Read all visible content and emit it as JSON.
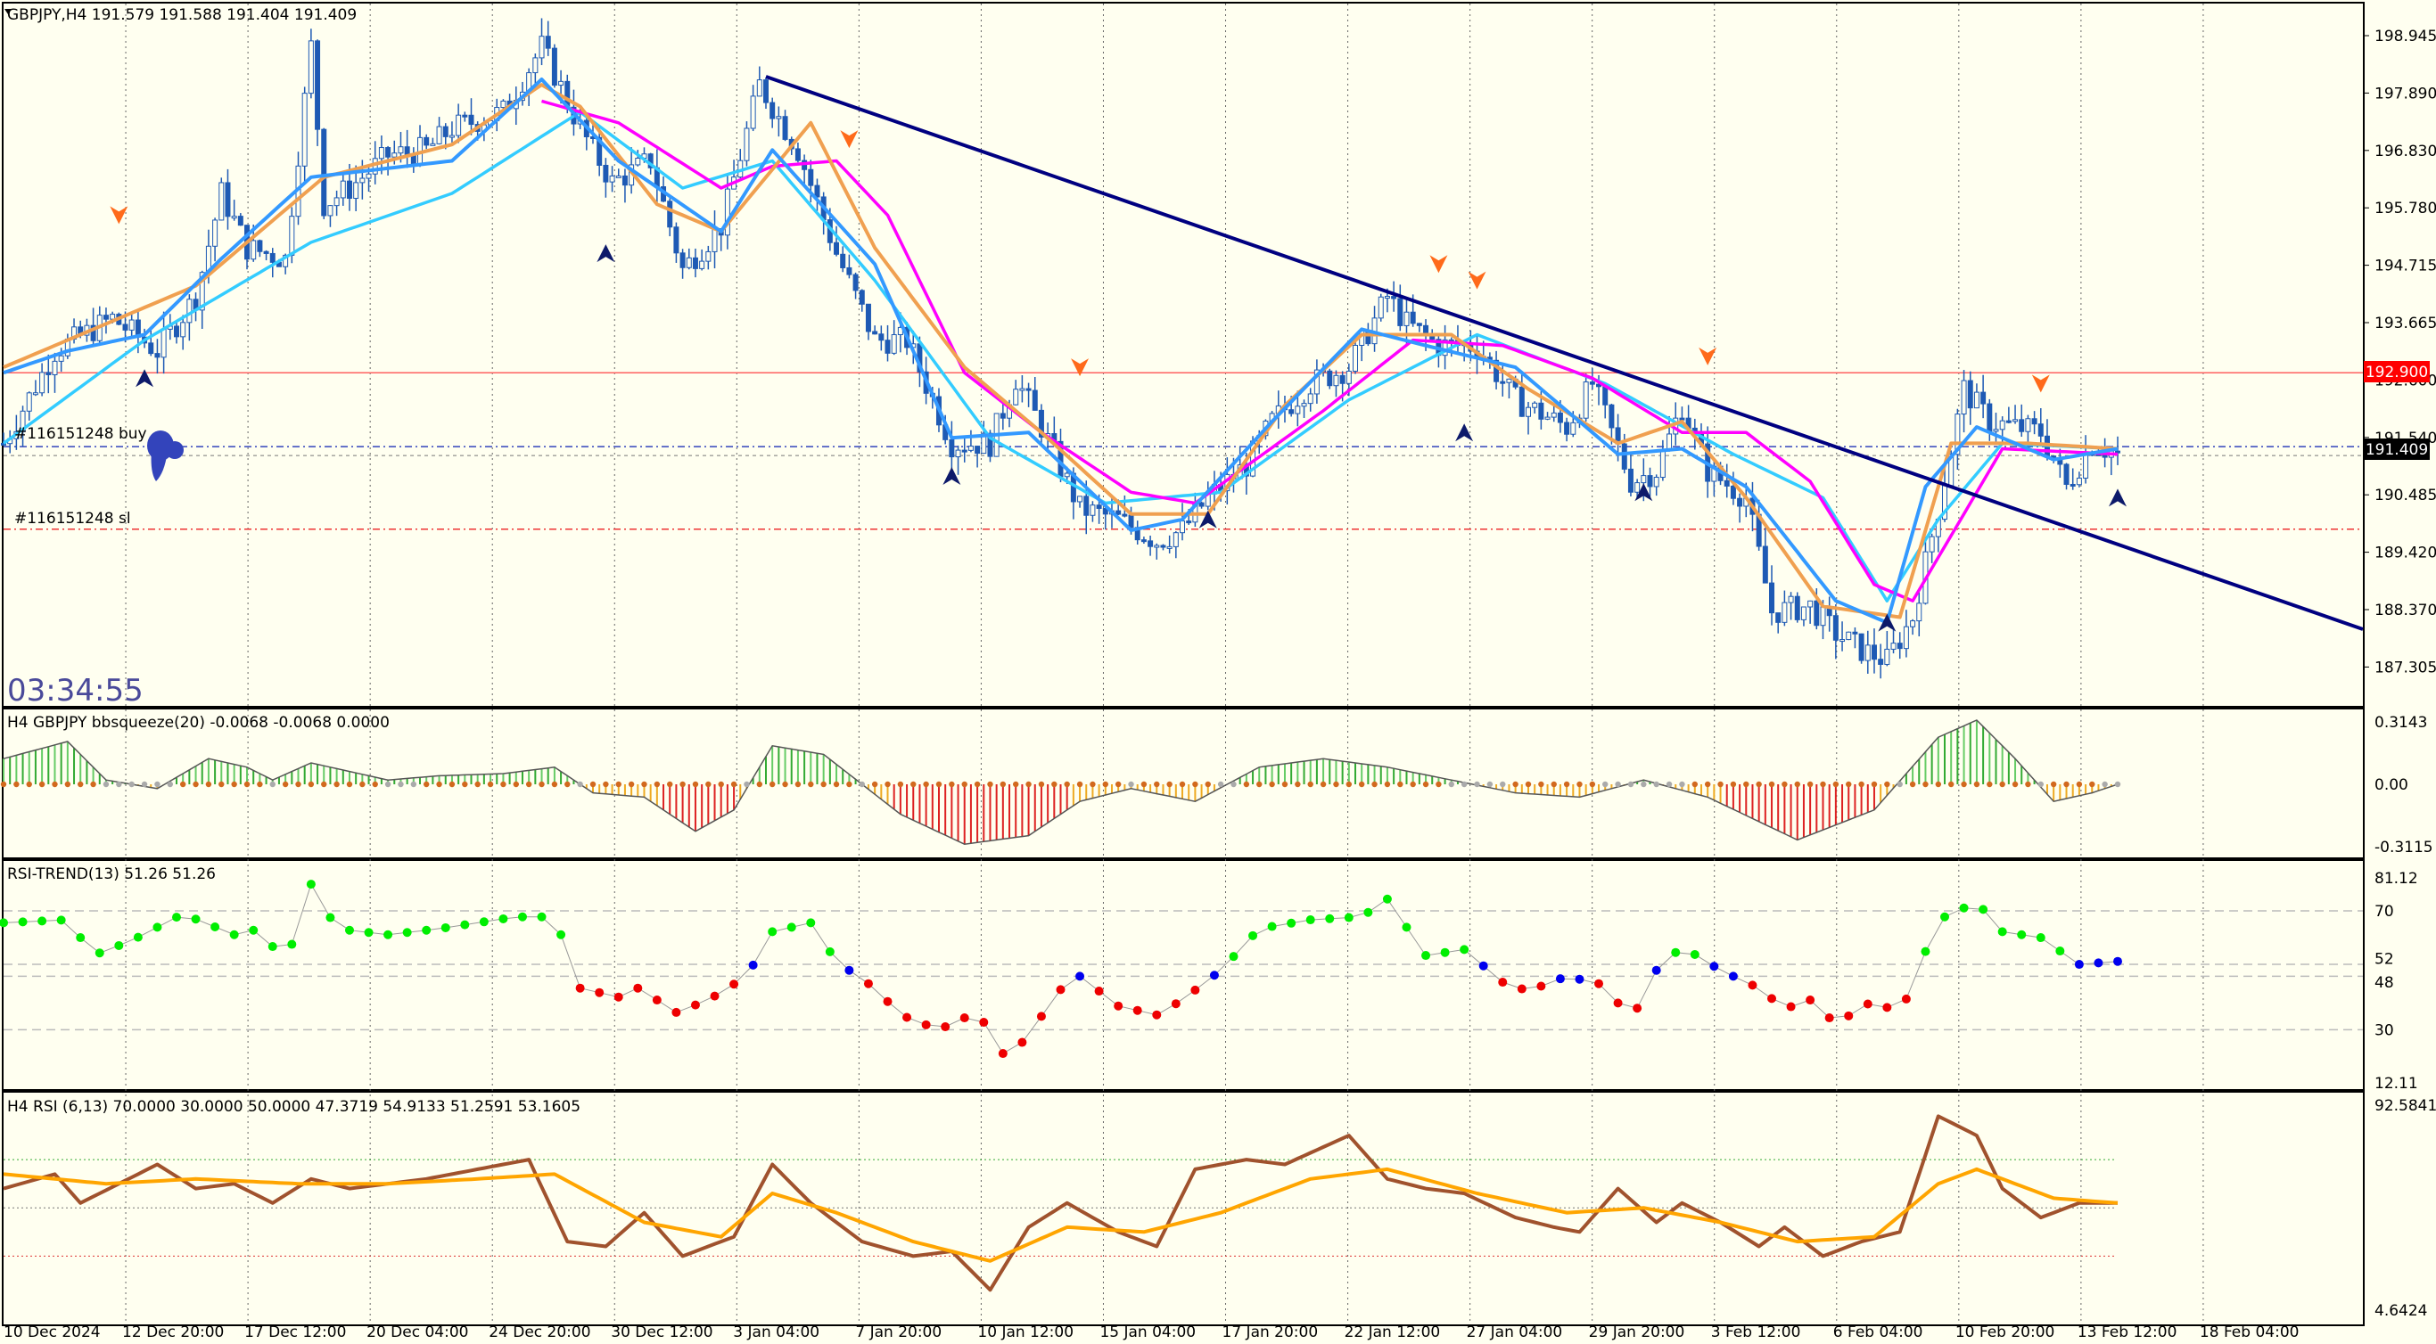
{
  "symbol_header": "GBPJPY,H4  191.579 191.588 191.404 191.409",
  "timer": "03:34:55",
  "orders": {
    "buy_label": "#116151248 buy",
    "sl_label": "#116151248 sl"
  },
  "price_tags": {
    "resistance": "192.900",
    "current": "191.409",
    "current_partial": "191.5??"
  },
  "colors": {
    "background": "#fffff0",
    "candle": "#1e5ab4",
    "ma_fast": "#3399ff",
    "ma_slow": "#33ccff",
    "ma_orange": "#f0a050",
    "ma_magenta": "#ff00ff",
    "trendline": "#000080",
    "resistance_line": "#ff6060",
    "price_tag_red": "#ff0000",
    "price_tag_black": "#000000",
    "rsi_up": "#00ee00",
    "rsi_down": "#ee0000",
    "rsi_neutral": "#0000ee",
    "rsi_line": "#a0522d",
    "rsi_signal": "#ffa500",
    "squeeze_pos": "#00aa00",
    "squeeze_neg": "#ee0000",
    "squeeze_dot_on": "#d2691e",
    "squeeze_dot_off": "#aaaaaa"
  },
  "price_axis": {
    "labels": [
      "198.945",
      "197.890",
      "196.830",
      "195.780",
      "194.715",
      "193.665",
      "192.600",
      "191.540",
      "190.485",
      "189.420",
      "188.370",
      "187.305"
    ]
  },
  "panels": {
    "squeeze": {
      "title": "H4 GBPJPY bbsqueeze(20) -0.0068 -0.0068 0.0000",
      "axis": [
        "0.3143",
        "0.00",
        "-0.3115"
      ]
    },
    "rsi_trend": {
      "title": "RSI-TREND(13) 51.26 51.26",
      "axis": [
        "81.12",
        "70",
        "52",
        "48",
        "30",
        "12.11"
      ]
    },
    "rsi": {
      "title": "H4 RSI  (6,13) 70.0000 30.0000 50.0000 47.3719 54.9133 51.2591 53.1605",
      "axis": [
        "92.5841",
        "4.6424"
      ]
    }
  },
  "time_axis": {
    "labels": [
      "10 Dec 2024",
      "12 Dec 20:00",
      "17 Dec 12:00",
      "20 Dec 04:00",
      "24 Dec 20:00",
      "30 Dec 12:00",
      "3 Jan 04:00",
      "7 Jan 20:00",
      "10 Jan 12:00",
      "15 Jan 04:00",
      "17 Jan 20:00",
      "22 Jan 12:00",
      "27 Jan 04:00",
      "29 Jan 20:00",
      "3 Feb 12:00",
      "6 Feb 04:00",
      "10 Feb 20:00",
      "13 Feb 12:00",
      "18 Feb 04:00"
    ]
  },
  "chart_data": {
    "type": "candlestick",
    "symbol": "GBPJPY",
    "timeframe": "H4",
    "last_ohlc": {
      "open": 191.579,
      "high": 191.588,
      "low": 191.404,
      "close": 191.409
    },
    "y_range": [
      186.8,
      199.4
    ],
    "resistance_level": 192.9,
    "order_buy_price": 191.54,
    "stop_loss_price": 190.02,
    "trendline": {
      "start": {
        "x": "3 Jan 04:00",
        "y": 198.27
      },
      "end": {
        "x": "right edge",
        "y": 188.95
      }
    },
    "close_path": [
      [
        0,
        191.6
      ],
      [
        8,
        193.3
      ],
      [
        17,
        193.9
      ],
      [
        24,
        193.3
      ],
      [
        30,
        194.3
      ],
      [
        34,
        196.2
      ],
      [
        38,
        195.2
      ],
      [
        44,
        195.0
      ],
      [
        48,
        198.9
      ],
      [
        50,
        196.0
      ],
      [
        54,
        196.3
      ],
      [
        60,
        196.9
      ],
      [
        66,
        197.0
      ],
      [
        70,
        197.4
      ],
      [
        78,
        197.7
      ],
      [
        84,
        198.9
      ],
      [
        90,
        197.4
      ],
      [
        95,
        196.4
      ],
      [
        101,
        196.8
      ],
      [
        106,
        194.8
      ],
      [
        112,
        195.6
      ],
      [
        118,
        198.2
      ],
      [
        124,
        197.0
      ],
      [
        130,
        195.1
      ],
      [
        136,
        193.5
      ],
      [
        141,
        193.5
      ],
      [
        148,
        191.6
      ],
      [
        154,
        191.6
      ],
      [
        158,
        192.8
      ],
      [
        162,
        191.9
      ],
      [
        168,
        190.4
      ],
      [
        174,
        190.2
      ],
      [
        180,
        189.8
      ],
      [
        184,
        190.0
      ],
      [
        188,
        190.6
      ],
      [
        194,
        191.2
      ],
      [
        198,
        192.0
      ],
      [
        204,
        192.7
      ],
      [
        210,
        193.0
      ],
      [
        216,
        194.3
      ],
      [
        219,
        193.8
      ],
      [
        224,
        193.4
      ],
      [
        230,
        193.4
      ],
      [
        236,
        192.4
      ],
      [
        244,
        191.9
      ],
      [
        248,
        192.7
      ],
      [
        254,
        190.9
      ],
      [
        258,
        191.1
      ],
      [
        262,
        192.3
      ],
      [
        266,
        191.1
      ],
      [
        272,
        190.6
      ],
      [
        276,
        188.5
      ],
      [
        282,
        188.6
      ],
      [
        286,
        188.1
      ],
      [
        290,
        187.8
      ],
      [
        294,
        187.6
      ],
      [
        298,
        188.4
      ],
      [
        302,
        190.4
      ],
      [
        306,
        192.6
      ],
      [
        310,
        192.0
      ],
      [
        314,
        191.9
      ],
      [
        318,
        191.8
      ],
      [
        322,
        190.8
      ],
      [
        326,
        191.6
      ],
      [
        330,
        191.4
      ]
    ],
    "ma_fast_path": [
      [
        0,
        192.9
      ],
      [
        10,
        193.3
      ],
      [
        22,
        193.6
      ],
      [
        34,
        195.0
      ],
      [
        48,
        196.5
      ],
      [
        70,
        196.8
      ],
      [
        84,
        198.3
      ],
      [
        96,
        196.8
      ],
      [
        112,
        195.5
      ],
      [
        120,
        197.0
      ],
      [
        136,
        194.9
      ],
      [
        148,
        191.7
      ],
      [
        160,
        191.8
      ],
      [
        176,
        190.0
      ],
      [
        184,
        190.2
      ],
      [
        198,
        192.0
      ],
      [
        212,
        193.7
      ],
      [
        222,
        193.4
      ],
      [
        236,
        193.0
      ],
      [
        252,
        191.4
      ],
      [
        262,
        191.5
      ],
      [
        272,
        190.8
      ],
      [
        286,
        188.7
      ],
      [
        294,
        188.3
      ],
      [
        300,
        190.8
      ],
      [
        308,
        191.9
      ],
      [
        320,
        191.3
      ],
      [
        330,
        191.5
      ]
    ],
    "ma_slow_path": [
      [
        0,
        191.6
      ],
      [
        22,
        193.5
      ],
      [
        48,
        195.3
      ],
      [
        70,
        196.2
      ],
      [
        90,
        197.7
      ],
      [
        106,
        196.3
      ],
      [
        120,
        196.8
      ],
      [
        136,
        194.6
      ],
      [
        154,
        191.7
      ],
      [
        172,
        190.5
      ],
      [
        190,
        190.7
      ],
      [
        210,
        192.4
      ],
      [
        230,
        193.6
      ],
      [
        250,
        192.7
      ],
      [
        270,
        191.4
      ],
      [
        284,
        190.6
      ],
      [
        294,
        188.7
      ],
      [
        302,
        190.2
      ],
      [
        312,
        191.6
      ],
      [
        330,
        191.5
      ]
    ],
    "ma_orange_path": [
      [
        0,
        193.0
      ],
      [
        14,
        193.7
      ],
      [
        30,
        194.5
      ],
      [
        50,
        196.5
      ],
      [
        70,
        197.1
      ],
      [
        84,
        198.2
      ],
      [
        90,
        197.8
      ],
      [
        102,
        196.0
      ],
      [
        112,
        195.5
      ],
      [
        126,
        197.5
      ],
      [
        136,
        195.2
      ],
      [
        150,
        193.0
      ],
      [
        162,
        191.8
      ],
      [
        176,
        190.3
      ],
      [
        188,
        190.3
      ],
      [
        200,
        192.3
      ],
      [
        212,
        193.6
      ],
      [
        226,
        193.6
      ],
      [
        238,
        192.6
      ],
      [
        252,
        191.6
      ],
      [
        262,
        192.0
      ],
      [
        272,
        190.6
      ],
      [
        284,
        188.6
      ],
      [
        296,
        188.4
      ],
      [
        304,
        191.6
      ],
      [
        316,
        191.6
      ],
      [
        330,
        191.5
      ]
    ],
    "ma_magenta_path": [
      [
        84,
        197.9
      ],
      [
        96,
        197.5
      ],
      [
        112,
        196.3
      ],
      [
        120,
        196.7
      ],
      [
        130,
        196.8
      ],
      [
        138,
        195.8
      ],
      [
        150,
        192.9
      ],
      [
        162,
        191.8
      ],
      [
        176,
        190.7
      ],
      [
        186,
        190.5
      ],
      [
        206,
        192.2
      ],
      [
        220,
        193.5
      ],
      [
        234,
        193.4
      ],
      [
        248,
        192.8
      ],
      [
        262,
        191.8
      ],
      [
        272,
        191.8
      ],
      [
        282,
        190.9
      ],
      [
        292,
        189.0
      ],
      [
        298,
        188.7
      ],
      [
        312,
        191.5
      ],
      [
        330,
        191.4
      ]
    ],
    "rsi_trend_points": [
      [
        0,
        66
      ],
      [
        10,
        67
      ],
      [
        14,
        55
      ],
      [
        20,
        60
      ],
      [
        28,
        69
      ],
      [
        36,
        62
      ],
      [
        40,
        64
      ],
      [
        44,
        52
      ],
      [
        48,
        79
      ],
      [
        52,
        64
      ],
      [
        60,
        62
      ],
      [
        68,
        64
      ],
      [
        80,
        68
      ],
      [
        86,
        68
      ],
      [
        90,
        44
      ],
      [
        96,
        41
      ],
      [
        100,
        45
      ],
      [
        104,
        35
      ],
      [
        110,
        40
      ],
      [
        116,
        48
      ],
      [
        120,
        63
      ],
      [
        126,
        66
      ],
      [
        130,
        53
      ],
      [
        136,
        44
      ],
      [
        140,
        35
      ],
      [
        146,
        30
      ],
      [
        152,
        36
      ],
      [
        156,
        22
      ],
      [
        160,
        27
      ],
      [
        164,
        42
      ],
      [
        168,
        48
      ],
      [
        174,
        38
      ],
      [
        180,
        35
      ],
      [
        184,
        40
      ],
      [
        190,
        50
      ],
      [
        196,
        64
      ],
      [
        204,
        67
      ],
      [
        212,
        68
      ],
      [
        216,
        74
      ],
      [
        222,
        55
      ],
      [
        228,
        57
      ],
      [
        234,
        46
      ],
      [
        238,
        43
      ],
      [
        244,
        48
      ],
      [
        250,
        45
      ],
      [
        254,
        33
      ],
      [
        258,
        50
      ],
      [
        262,
        58
      ],
      [
        268,
        50
      ],
      [
        274,
        44
      ],
      [
        278,
        37
      ],
      [
        282,
        40
      ],
      [
        286,
        32
      ],
      [
        292,
        40
      ],
      [
        296,
        35
      ],
      [
        302,
        67
      ],
      [
        308,
        73
      ],
      [
        312,
        63
      ],
      [
        318,
        61
      ],
      [
        324,
        52
      ],
      [
        330,
        53
      ]
    ],
    "rsi_line_points": [
      [
        0,
        58
      ],
      [
        8,
        64
      ],
      [
        12,
        52
      ],
      [
        18,
        60
      ],
      [
        24,
        68
      ],
      [
        30,
        58
      ],
      [
        36,
        60
      ],
      [
        42,
        52
      ],
      [
        48,
        62
      ],
      [
        54,
        58
      ],
      [
        60,
        60
      ],
      [
        66,
        62
      ],
      [
        74,
        66
      ],
      [
        82,
        70
      ],
      [
        88,
        36
      ],
      [
        94,
        34
      ],
      [
        100,
        48
      ],
      [
        106,
        30
      ],
      [
        114,
        38
      ],
      [
        120,
        68
      ],
      [
        126,
        52
      ],
      [
        134,
        36
      ],
      [
        142,
        30
      ],
      [
        148,
        32
      ],
      [
        154,
        16
      ],
      [
        160,
        42
      ],
      [
        166,
        52
      ],
      [
        174,
        40
      ],
      [
        180,
        34
      ],
      [
        186,
        66
      ],
      [
        194,
        70
      ],
      [
        200,
        68
      ],
      [
        210,
        80
      ],
      [
        216,
        62
      ],
      [
        222,
        58
      ],
      [
        228,
        56
      ],
      [
        236,
        46
      ],
      [
        242,
        42
      ],
      [
        246,
        40
      ],
      [
        252,
        58
      ],
      [
        258,
        44
      ],
      [
        262,
        52
      ],
      [
        268,
        44
      ],
      [
        274,
        34
      ],
      [
        278,
        42
      ],
      [
        284,
        30
      ],
      [
        290,
        36
      ],
      [
        296,
        40
      ],
      [
        302,
        88
      ],
      [
        308,
        80
      ],
      [
        312,
        58
      ],
      [
        318,
        46
      ],
      [
        324,
        52
      ],
      [
        330,
        52
      ]
    ],
    "rsi_signal_points": [
      [
        0,
        64
      ],
      [
        16,
        60
      ],
      [
        30,
        62
      ],
      [
        46,
        60
      ],
      [
        60,
        60
      ],
      [
        74,
        62
      ],
      [
        86,
        64
      ],
      [
        100,
        44
      ],
      [
        112,
        38
      ],
      [
        120,
        56
      ],
      [
        130,
        48
      ],
      [
        142,
        36
      ],
      [
        154,
        28
      ],
      [
        166,
        42
      ],
      [
        178,
        40
      ],
      [
        190,
        48
      ],
      [
        204,
        62
      ],
      [
        216,
        66
      ],
      [
        230,
        56
      ],
      [
        244,
        48
      ],
      [
        256,
        50
      ],
      [
        268,
        44
      ],
      [
        280,
        36
      ],
      [
        292,
        38
      ],
      [
        302,
        60
      ],
      [
        308,
        66
      ],
      [
        320,
        54
      ],
      [
        330,
        52
      ]
    ],
    "rsi_levels": [
      70,
      50,
      30
    ],
    "squeeze_hist_points": [
      [
        0,
        0.12
      ],
      [
        10,
        0.2
      ],
      [
        16,
        0.02
      ],
      [
        24,
        -0.02
      ],
      [
        32,
        0.12
      ],
      [
        38,
        0.08
      ],
      [
        42,
        0.02
      ],
      [
        48,
        0.1
      ],
      [
        54,
        0.06
      ],
      [
        60,
        0.02
      ],
      [
        68,
        0.04
      ],
      [
        78,
        0.05
      ],
      [
        86,
        0.08
      ],
      [
        92,
        -0.04
      ],
      [
        100,
        -0.06
      ],
      [
        108,
        -0.22
      ],
      [
        114,
        -0.12
      ],
      [
        120,
        0.18
      ],
      [
        128,
        0.14
      ],
      [
        134,
        0.0
      ],
      [
        140,
        -0.14
      ],
      [
        150,
        -0.28
      ],
      [
        160,
        -0.24
      ],
      [
        168,
        -0.08
      ],
      [
        176,
        -0.02
      ],
      [
        186,
        -0.08
      ],
      [
        196,
        0.08
      ],
      [
        206,
        0.12
      ],
      [
        216,
        0.08
      ],
      [
        226,
        0.02
      ],
      [
        236,
        -0.04
      ],
      [
        246,
        -0.06
      ],
      [
        256,
        0.02
      ],
      [
        266,
        -0.06
      ],
      [
        280,
        -0.26
      ],
      [
        292,
        -0.12
      ],
      [
        302,
        0.22
      ],
      [
        308,
        0.3
      ],
      [
        314,
        0.12
      ],
      [
        320,
        -0.08
      ],
      [
        326,
        -0.04
      ],
      [
        330,
        0.0
      ]
    ],
    "markers_up": [
      [
        22,
        192.8
      ],
      [
        94,
        195.1
      ],
      [
        148,
        191.0
      ],
      [
        188,
        190.2
      ],
      [
        228,
        191.8
      ],
      [
        256,
        190.7
      ],
      [
        294,
        188.3
      ],
      [
        330,
        190.6
      ]
    ],
    "markers_down": [
      [
        18,
        195.8
      ],
      [
        132,
        197.2
      ],
      [
        168,
        193.0
      ],
      [
        224,
        194.9
      ],
      [
        230,
        194.6
      ],
      [
        266,
        193.2
      ],
      [
        318,
        192.7
      ]
    ]
  }
}
